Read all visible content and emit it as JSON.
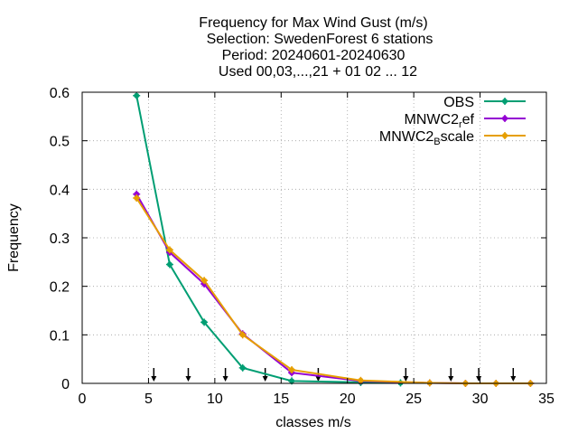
{
  "chart_data": {
    "type": "line",
    "title_lines": [
      "Frequency  for Max Wind Gust (m/s)",
      "Selection: SwedenForest      6 stations",
      "Period: 20240601-20240630",
      "Used 00,03,...,21 + 01 02 ... 12"
    ],
    "xlabel": "classes m/s",
    "ylabel": "Frequency",
    "xlim": [
      0,
      35
    ],
    "ylim": [
      0,
      0.6
    ],
    "xticks": [
      "0",
      "5",
      "10",
      "15",
      "20",
      "25",
      "30",
      "35"
    ],
    "yticks": [
      "0",
      "0.1",
      "0.2",
      "0.3",
      "0.4",
      "0.5",
      "0.6"
    ],
    "grid": true,
    "legend_position": "top-right",
    "series": [
      {
        "name": "OBS",
        "color": "#009e73",
        "x": [
          4.1,
          6.6,
          9.2,
          12.1,
          15.8,
          21.0,
          24.0
        ],
        "y": [
          0.593,
          0.245,
          0.126,
          0.032,
          0.005,
          0.002,
          0.001
        ]
      },
      {
        "name": "MNWC2ref",
        "legend_text": [
          "MNWC2",
          "r",
          "ef"
        ],
        "color": "#9400d3",
        "x": [
          4.1,
          6.6,
          9.2,
          12.1,
          15.8,
          21.0,
          26.2,
          28.9,
          31.2,
          33.8
        ],
        "y": [
          0.39,
          0.27,
          0.205,
          0.102,
          0.022,
          0.005,
          0.001,
          0.0,
          0.0,
          0.0
        ]
      },
      {
        "name": "MNWC2Bscale",
        "legend_text": [
          "MNWC2",
          "B",
          "scale"
        ],
        "color": "#e69f00",
        "x": [
          4.1,
          6.6,
          9.2,
          12.1,
          15.8,
          21.0,
          26.2,
          28.9,
          31.2,
          33.8
        ],
        "y": [
          0.382,
          0.275,
          0.212,
          0.1,
          0.028,
          0.006,
          0.001,
          0.0,
          0.0,
          0.0
        ]
      }
    ],
    "arrow_markers_x": [
      5.4,
      8.0,
      10.8,
      13.8,
      17.8,
      24.4,
      27.8,
      29.9,
      32.5
    ]
  }
}
